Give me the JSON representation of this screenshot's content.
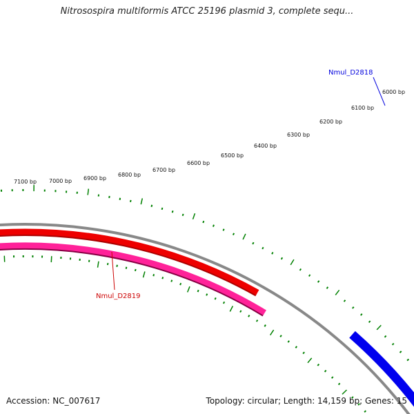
{
  "title": "Nitrosospira multiformis ATCC 25196 plasmid 3, complete sequ...",
  "footer": {
    "accession": "Accession: NC_007617",
    "topology": "Topology: circular; Length: 14,159 bp; Genes: 15"
  },
  "ruler_labels": [
    "7100 bp",
    "7000 bp",
    "6900 bp",
    "6800 bp",
    "6700 bp",
    "6600 bp",
    "6500 bp",
    "6400 bp",
    "6300 bp",
    "6200 bp",
    "6100 bp",
    "6000 bp"
  ],
  "genes": [
    {
      "name": "Nmul_D2818",
      "color": "#0000dd"
    },
    {
      "name": "Nmul_D2819",
      "color": "#cc0000"
    }
  ],
  "colors": {
    "backbone": "#888888",
    "tick": "#008000",
    "gene_forward": "#0000ee",
    "gene_reverse": "#ee0000",
    "gene_magenta": "#ff2299"
  }
}
